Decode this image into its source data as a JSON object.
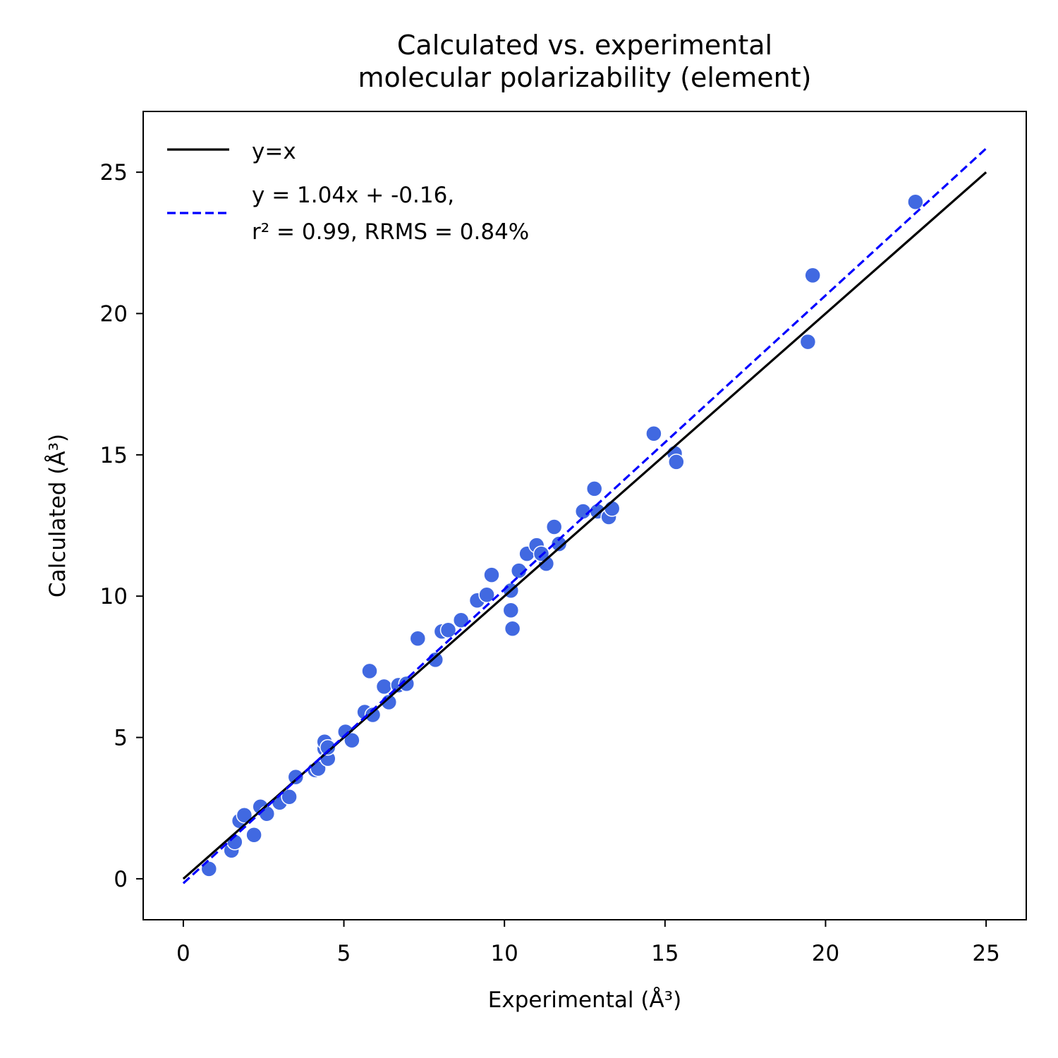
{
  "chart_data": {
    "type": "scatter",
    "title": [
      "Calculated vs. experimental",
      "molecular polarizability (element)"
    ],
    "xlabel": "Experimental (Å³)",
    "ylabel": "Calculated (Å³)",
    "xlim": [
      -1.25,
      26.25
    ],
    "ylim": [
      -1.45,
      27.15
    ],
    "xticks": [
      0,
      5,
      10,
      15,
      20,
      25
    ],
    "yticks": [
      0,
      5,
      10,
      15,
      20,
      25
    ],
    "grid": false,
    "legend_position": "upper-left",
    "point_color": "#4169e1",
    "series": [
      {
        "name": "data",
        "kind": "points",
        "x": [
          0.8,
          1.5,
          1.6,
          1.75,
          1.9,
          2.2,
          2.4,
          2.6,
          3.0,
          3.3,
          3.5,
          4.1,
          4.2,
          4.4,
          4.4,
          4.5,
          4.5,
          5.05,
          5.25,
          5.65,
          5.9,
          5.8,
          6.25,
          6.4,
          6.7,
          6.95,
          7.3,
          7.85,
          8.05,
          8.25,
          8.65,
          9.15,
          9.45,
          9.6,
          10.2,
          10.2,
          10.25,
          10.45,
          10.7,
          11.0,
          11.3,
          11.15,
          11.55,
          11.7,
          12.45,
          12.8,
          12.9,
          13.25,
          13.35,
          14.65,
          15.3,
          15.35,
          19.45,
          19.6,
          22.8
        ],
        "y": [
          0.35,
          1.0,
          1.3,
          2.05,
          2.25,
          1.55,
          2.55,
          2.3,
          2.7,
          2.9,
          3.6,
          3.85,
          3.9,
          4.6,
          4.85,
          4.25,
          4.65,
          5.2,
          4.9,
          5.9,
          5.8,
          7.35,
          6.8,
          6.25,
          6.85,
          6.9,
          8.5,
          7.75,
          8.75,
          8.8,
          9.15,
          9.85,
          10.05,
          10.75,
          10.2,
          9.5,
          8.85,
          10.9,
          11.5,
          11.8,
          11.15,
          11.5,
          12.45,
          11.85,
          13.0,
          13.8,
          13.0,
          12.8,
          13.1,
          15.75,
          15.05,
          14.75,
          19.0,
          21.35,
          23.95
        ]
      },
      {
        "name": "y=x",
        "kind": "line",
        "x": [
          0,
          25
        ],
        "y": [
          0,
          25
        ],
        "color": "#000000",
        "dash": "solid"
      },
      {
        "name": "y = 1.04x + -0.16,\nr² = 0.99, RRMS = 0.84%",
        "kind": "line",
        "x": [
          0,
          25
        ],
        "y": [
          -0.16,
          25.84
        ],
        "color": "#0000ff",
        "dash": "dashed"
      }
    ],
    "legend": [
      {
        "label_lines": [
          "y=x"
        ],
        "series": 1
      },
      {
        "label_lines": [
          "y = 1.04x + -0.16,",
          "r² = 0.99, RRMS = 0.84%"
        ],
        "series": 2
      }
    ]
  }
}
